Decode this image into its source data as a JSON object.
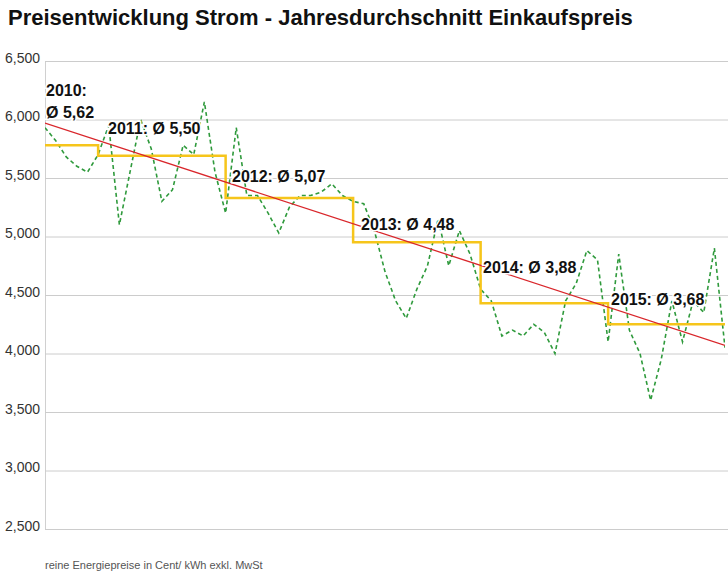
{
  "chart_data": {
    "type": "line",
    "title": "Preisentwicklung Strom - Jahresdurchschnitt Einkaufspreis",
    "footnote": "reine Energiepreise in Cent/ kWh exkl. MwSt",
    "annotations": [
      "2010:\nØ 5,62",
      "2011: Ø 5,50",
      "2012: Ø 5,07",
      "2013: Ø 4,48",
      "2014: Ø 3,88",
      "2015: Ø 3,68"
    ],
    "x": [
      0,
      1,
      2,
      3,
      4,
      5,
      6,
      7,
      8,
      9,
      10,
      11,
      12,
      13,
      14,
      15,
      16,
      17,
      18,
      19,
      20,
      21,
      22,
      23,
      24,
      25,
      26,
      27,
      28,
      29,
      30,
      31,
      32,
      33,
      34,
      35,
      36,
      37,
      38,
      39,
      40,
      41,
      42,
      43,
      44,
      45,
      46,
      47,
      48,
      49,
      50,
      51,
      52,
      53,
      54,
      55,
      56,
      57,
      58,
      59,
      60,
      61,
      62,
      63,
      64
    ],
    "xlim": [
      0,
      64
    ],
    "ylim": [
      2.5,
      6.5
    ],
    "yticks": [
      {
        "value": 2.5,
        "label": "2,500"
      },
      {
        "value": 3,
        "label": "3,000"
      },
      {
        "value": 3.5,
        "label": "3,500"
      },
      {
        "value": 4,
        "label": "4,000"
      },
      {
        "value": 4.5,
        "label": "4,500"
      },
      {
        "value": 5,
        "label": "5,000"
      },
      {
        "value": 5.5,
        "label": "5,500"
      },
      {
        "value": 6,
        "label": "6,000"
      },
      {
        "value": 6.5,
        "label": "6,500"
      }
    ],
    "grid": true,
    "tick_labels": "y",
    "series": [
      {
        "color": "#2f9a3c",
        "line_style": "dashed",
        "values": [
          5.93,
          5.82,
          5.68,
          5.6,
          5.55,
          5.7,
          5.95,
          5.1,
          5.55,
          6.0,
          5.75,
          5.3,
          5.4,
          5.78,
          5.7,
          6.15,
          5.55,
          5.2,
          5.93,
          5.35,
          5.35,
          5.2,
          5.03,
          5.25,
          5.35,
          5.35,
          5.38,
          5.45,
          5.35,
          5.3,
          5.28,
          5.05,
          4.7,
          4.45,
          4.3,
          4.55,
          4.75,
          5.15,
          4.75,
          5.05,
          4.85,
          4.55,
          4.45,
          4.15,
          4.2,
          4.15,
          4.25,
          4.18,
          4.0,
          4.45,
          4.6,
          4.88,
          4.8,
          4.1,
          4.85,
          4.2,
          4.0,
          3.6,
          3.95,
          4.45,
          4.1,
          4.45,
          4.35,
          4.9,
          4.05
        ]
      },
      {
        "color": "#f6c51b",
        "line_style": "step",
        "values": [
          5.78,
          5.78,
          5.78,
          5.78,
          5.78,
          5.69,
          5.69,
          5.69,
          5.69,
          5.69,
          5.69,
          5.69,
          5.69,
          5.69,
          5.69,
          5.69,
          5.69,
          5.33,
          5.33,
          5.33,
          5.33,
          5.33,
          5.33,
          5.33,
          5.33,
          5.33,
          5.33,
          5.33,
          5.33,
          4.95,
          4.95,
          4.95,
          4.95,
          4.95,
          4.95,
          4.95,
          4.95,
          4.95,
          4.95,
          4.95,
          4.95,
          4.43,
          4.43,
          4.43,
          4.43,
          4.43,
          4.43,
          4.43,
          4.43,
          4.43,
          4.43,
          4.43,
          4.43,
          4.25,
          4.25,
          4.25,
          4.25,
          4.25,
          4.25,
          4.25,
          4.25,
          4.25,
          4.25,
          4.25,
          4.25
        ]
      },
      {
        "color": "#d9262b",
        "line_style": "solid",
        "x": [
          0,
          64
        ],
        "values": [
          5.97,
          4.07
        ]
      }
    ]
  }
}
